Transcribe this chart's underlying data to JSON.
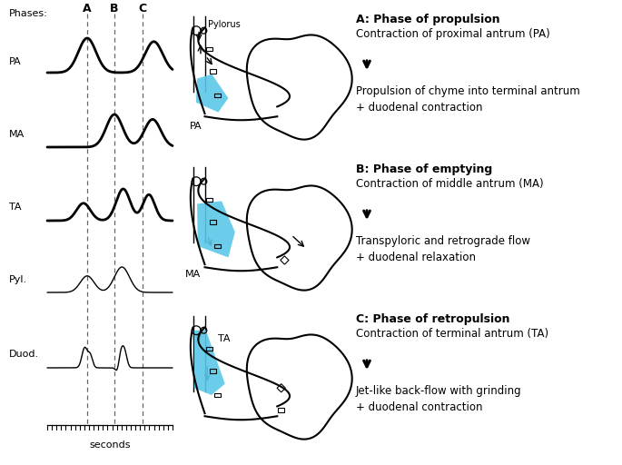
{
  "phases_label": "Phases:",
  "phase_letters": [
    "A",
    "B",
    "C"
  ],
  "trace_labels": [
    "PA",
    "MA",
    "TA",
    "Pyl.",
    "Duod."
  ],
  "xlabel": "seconds",
  "phase_a_title": "A: Phase of propulsion",
  "phase_a_sub": "Contraction of proximal antrum (PA)",
  "phase_a_desc": "Propulsion of chyme into terminal antrum\n+ duodenal contraction",
  "phase_b_title": "B: Phase of emptying",
  "phase_b_sub": "Contraction of middle antrum (MA)",
  "phase_b_desc": "Transpyloric and retrograde flow\n+ duodenal relaxation",
  "phase_c_title": "C: Phase of retropulsion",
  "phase_c_sub": "Contraction of terminal antrum (TA)",
  "phase_c_desc": "Jet-like back-flow with grinding\n+ duodenal contraction",
  "pylorus_label": "Pylorus",
  "pa_label": "PA",
  "ma_label": "MA",
  "ta_label": "TA",
  "line_color": "#000000",
  "bg_color": "#ffffff",
  "blue_fill": "#5BC8E8",
  "dashed_line_color": "#666666"
}
